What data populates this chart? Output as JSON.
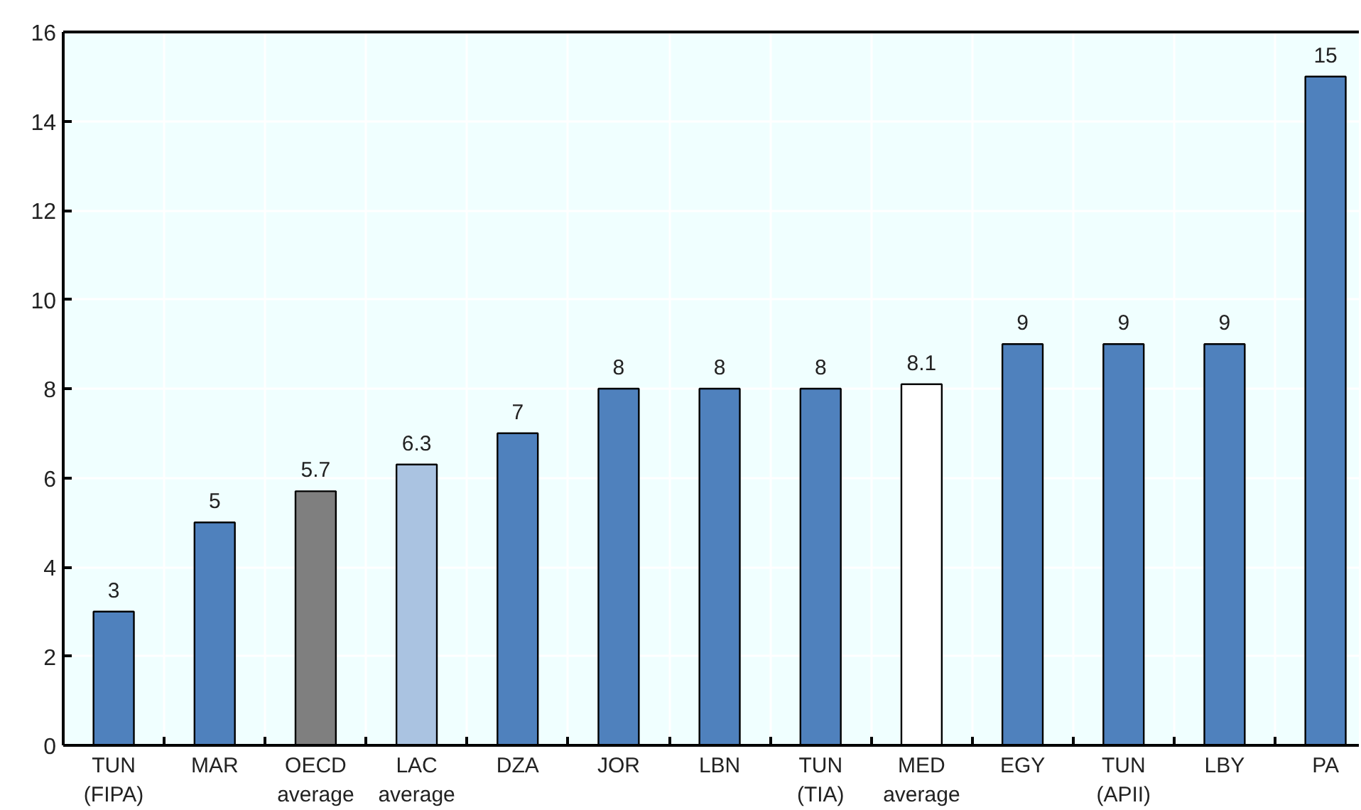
{
  "chart_data": {
    "type": "bar",
    "categories": [
      "TUN (FIPA)",
      "MAR",
      "OECD average",
      "LAC average",
      "DZA",
      "JOR",
      "LBN",
      "TUN (TIA)",
      "MED average",
      "EGY",
      "TUN (APII)",
      "LBY",
      "PA"
    ],
    "values": [
      3,
      5,
      5.7,
      6.3,
      7,
      8,
      8,
      8,
      8.1,
      9,
      9,
      9,
      15
    ],
    "colors": [
      "#4f81bd",
      "#4f81bd",
      "#7f7f7f",
      "#aac3e1",
      "#4f81bd",
      "#4f81bd",
      "#4f81bd",
      "#4f81bd",
      "#ffffff",
      "#4f81bd",
      "#4f81bd",
      "#4f81bd",
      "#4f81bd"
    ],
    "ylim": [
      0,
      16
    ],
    "yticks": [
      0,
      2,
      4,
      6,
      8,
      10,
      12,
      14,
      16
    ],
    "grid": true,
    "data_labels": true
  }
}
